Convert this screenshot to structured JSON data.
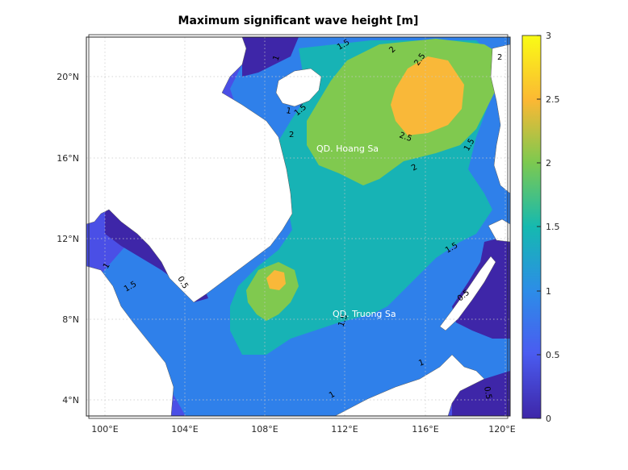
{
  "title": "Maximum significant wave height [m]",
  "map": {
    "lon_ticks": [
      "100°E",
      "104°E",
      "108°E",
      "112°E",
      "116°E",
      "120°E"
    ],
    "lat_ticks": [
      "20°N",
      "16°N",
      "12°N",
      "8°N",
      "4°N"
    ],
    "place_labels": [
      "QD. Hoang Sa",
      "QD. Truong Sa"
    ],
    "contour_labels": [
      "2.5",
      "2.5",
      "2",
      "2",
      "2",
      "2",
      "1.5",
      "1.5",
      "1.5",
      "1.5",
      "1.5",
      "1.5",
      "1",
      "1",
      "1",
      "1",
      "1",
      "0.5",
      "0.5",
      "0.5"
    ]
  },
  "colorbar": {
    "ticks": [
      "3",
      "2.5",
      "2",
      "1.5",
      "1",
      "0.5",
      "0"
    ],
    "colors": {
      "0": "#3e26a8",
      "0.5": "#4a5cf0",
      "1": "#2d8ce8",
      "1.5": "#15b9b0",
      "2": "#7ec94f",
      "2.5": "#fbb834",
      "3": "#f9fb15"
    }
  },
  "legend_colors": {
    "land": "#ffffff",
    "deep_low": "#3e26a8",
    "low": "#4a4fe6",
    "blue": "#2f80ea",
    "cyan": "#17b3b5",
    "green": "#80c94f",
    "orange": "#f9b839"
  }
}
